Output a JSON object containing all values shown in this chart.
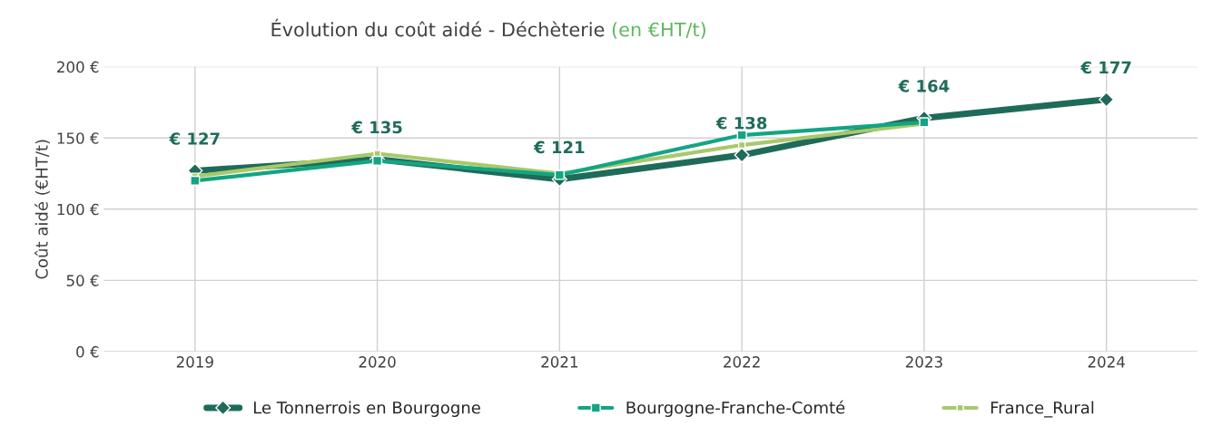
{
  "chart_data": {
    "type": "line",
    "title": "Évolution du coût aidé - Déchèterie",
    "subtitle": "(en €HT/t)",
    "ylabel": "Coût aidé (€HT/t)",
    "categories": [
      "2019",
      "2020",
      "2021",
      "2022",
      "2023",
      "2024"
    ],
    "series": [
      {
        "name": "Le Tonnerrois en Bourgogne",
        "color": "#1f6b5a",
        "marker": "diamond",
        "values": [
          127,
          135,
          121,
          138,
          164,
          177
        ],
        "value_labels": [
          "€ 127",
          "€ 135",
          "€ 121",
          "€ 138",
          "€ 164",
          "€ 177"
        ]
      },
      {
        "name": "Bourgogne-Franche-Comté",
        "color": "#13a583",
        "marker": "square",
        "values": [
          120,
          134,
          124,
          152,
          161,
          null
        ]
      },
      {
        "name": "France_Rural",
        "color": "#a8c96a",
        "marker": "square",
        "values": [
          123,
          139,
          125,
          145,
          160,
          null
        ]
      }
    ],
    "ylim": [
      0,
      200
    ],
    "yticks": [
      {
        "value": 0,
        "label": "0 €"
      },
      {
        "value": 50,
        "label": "50 €"
      },
      {
        "value": 100,
        "label": "100 €"
      },
      {
        "value": 150,
        "label": "150 €"
      },
      {
        "value": 200,
        "label": "200 €"
      }
    ],
    "grid": true,
    "legend": "bottom",
    "line_style": "solid"
  }
}
